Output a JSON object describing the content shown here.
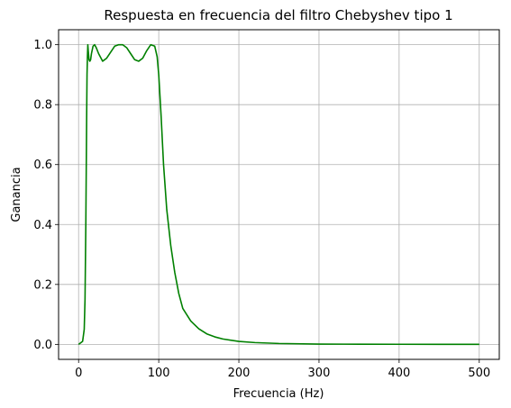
{
  "chart_data": {
    "type": "line",
    "title": "Respuesta en frecuencia del filtro Chebyshev tipo 1",
    "xlabel": "Frecuencia (Hz)",
    "ylabel": "Ganancia",
    "xlim": [
      -25,
      525
    ],
    "ylim": [
      -0.05,
      1.05
    ],
    "xticks": [
      0,
      100,
      200,
      300,
      400,
      500
    ],
    "yticks": [
      0.0,
      0.2,
      0.4,
      0.6,
      0.8,
      1.0
    ],
    "xtick_labels": [
      "0",
      "100",
      "200",
      "300",
      "400",
      "500"
    ],
    "ytick_labels": [
      "0.0",
      "0.2",
      "0.4",
      "0.6",
      "0.8",
      "1.0"
    ],
    "grid": true,
    "series": [
      {
        "color": "#008000",
        "x": [
          0,
          5,
          7,
          8,
          9,
          10,
          10.5,
          11,
          11.5,
          12,
          13,
          14,
          15,
          16,
          18,
          20,
          22,
          25,
          30,
          35,
          40,
          45,
          50,
          55,
          60,
          65,
          70,
          75,
          80,
          85,
          90,
          95,
          98,
          100,
          103,
          106,
          110,
          115,
          120,
          125,
          130,
          140,
          150,
          160,
          170,
          180,
          200,
          220,
          250,
          300,
          350,
          400,
          450,
          500
        ],
        "y": [
          0.0,
          0.01,
          0.05,
          0.15,
          0.4,
          0.75,
          0.9,
          0.96,
          1.0,
          0.98,
          0.95,
          0.945,
          0.95,
          0.97,
          0.995,
          1.0,
          0.99,
          0.97,
          0.945,
          0.955,
          0.975,
          0.995,
          1.0,
          1.0,
          0.99,
          0.97,
          0.95,
          0.945,
          0.955,
          0.98,
          1.0,
          0.995,
          0.96,
          0.9,
          0.76,
          0.6,
          0.45,
          0.33,
          0.24,
          0.17,
          0.12,
          0.078,
          0.052,
          0.035,
          0.025,
          0.018,
          0.01,
          0.006,
          0.003,
          0.001,
          0.0005,
          0.0003,
          0.0002,
          0.0001
        ]
      }
    ]
  }
}
